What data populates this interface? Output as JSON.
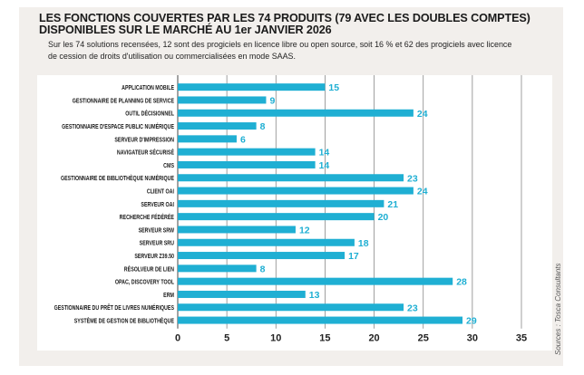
{
  "title_line1": "LES FONCTIONS COUVERTES PAR LES 74 PRODUITS (79 AVEC LES DOUBLES COMPTES)",
  "title_line2": "DISPONIBLES SUR LE MARCHÉ AU 1er JANVIER 2026",
  "subtitle": "Sur les 74 solutions recensées, 12 sont des progiciels en licence libre ou open source, soit 16 % et 62 des progiciels avec licence de cession de droits d'utilisation ou commercialisées en mode SAAS.",
  "source": "Sources : Tosca Consultants",
  "chart_data": {
    "type": "bar",
    "orientation": "horizontal",
    "categories": [
      "APPLICATION MOBILE",
      "GESTIONNAIRE DE PLANNING DE SERVICE",
      "OUTIL DÉCISIONNEL",
      "GESTIONNAIRE D'ESPACE PUBLIC NUMÉRIQUE",
      "SERVEUR D'IMPRESSION",
      "NAVIGATEUR SÉCURISÉ",
      "CMS",
      "GESTIONNAIRE DE BIBLIOTHÈQUE NUMÉRIQUE",
      "CLIENT OAI",
      "SERVEUR OAI",
      "RECHERCHE FÉDÉRÉE",
      "SERVEUR SRW",
      "SERVEUR SRU",
      "SERVEUR Z39.50",
      "RÉSOLVEUR DE LIEN",
      "OPAC, DISCOVERY TOOL",
      "ERM",
      "GESTIONNAIRE DU PRÊT DE LIVRES NUMÉRIQUES",
      "SYSTÈME DE GESTION DE BIBLIOTHÈQUE"
    ],
    "values": [
      15,
      9,
      24,
      8,
      6,
      14,
      14,
      23,
      24,
      21,
      20,
      12,
      18,
      17,
      8,
      28,
      13,
      23,
      29
    ],
    "xlim": [
      0,
      35
    ],
    "xticks": [
      0,
      5,
      10,
      15,
      20,
      25,
      30,
      35
    ],
    "grid": true,
    "bar_color": "#1fafd3",
    "label_color": "#1fafd3"
  }
}
